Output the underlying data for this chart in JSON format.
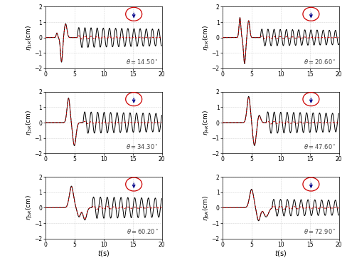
{
  "panels": [
    {
      "ylabel": "$\\eta_{1R}$(cm)",
      "theta": "14.50",
      "row": 0,
      "col": 0
    },
    {
      "ylabel": "$\\eta_{2R}$(cm)",
      "theta": "20.60",
      "row": 0,
      "col": 1
    },
    {
      "ylabel": "$\\eta_{3R}$(cm)",
      "theta": "34.30",
      "row": 1,
      "col": 0
    },
    {
      "ylabel": "$\\eta_{4R}$(cm)",
      "theta": "47.60",
      "row": 1,
      "col": 1
    },
    {
      "ylabel": "$\\eta_{5R}$(cm)",
      "theta": "60.20",
      "row": 2,
      "col": 0
    },
    {
      "ylabel": "$\\eta_{6R}$(cm)",
      "theta": "72.90",
      "row": 2,
      "col": 1
    }
  ],
  "xlim": [
    0,
    20
  ],
  "ylim": [
    -2,
    2
  ],
  "xticks": [
    0,
    5,
    10,
    15,
    20
  ],
  "yticks": [
    -2,
    -1,
    0,
    1,
    2
  ],
  "black_color": "#000000",
  "red_color": "#cc0000",
  "circle_color": "#cc0000",
  "arrow_color": "#00008B",
  "grid_color": "#b0b0b0"
}
